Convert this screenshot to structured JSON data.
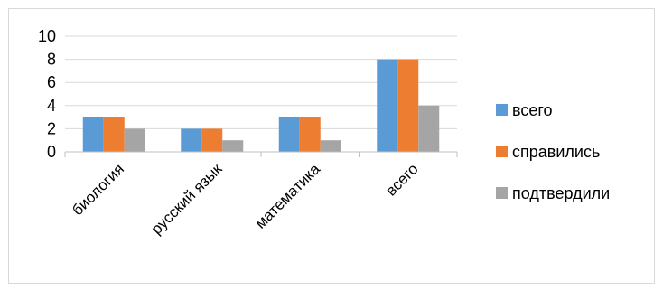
{
  "chart_data": {
    "type": "bar",
    "categories": [
      "биология",
      "русский язык",
      "математика",
      "всего"
    ],
    "series": [
      {
        "name": "всего",
        "color": "#5B9BD5",
        "values": [
          3,
          2,
          3,
          8
        ]
      },
      {
        "name": "справились",
        "color": "#ED7D31",
        "values": [
          3,
          2,
          3,
          8
        ]
      },
      {
        "name": "подтвердили",
        "color": "#A5A5A5",
        "values": [
          2,
          1,
          1,
          4
        ]
      }
    ],
    "ylim": [
      0,
      10
    ],
    "yticks": [
      0,
      2,
      4,
      6,
      8,
      10
    ],
    "grid": true,
    "legend": "right",
    "title": "",
    "xlabel": "",
    "ylabel": ""
  }
}
